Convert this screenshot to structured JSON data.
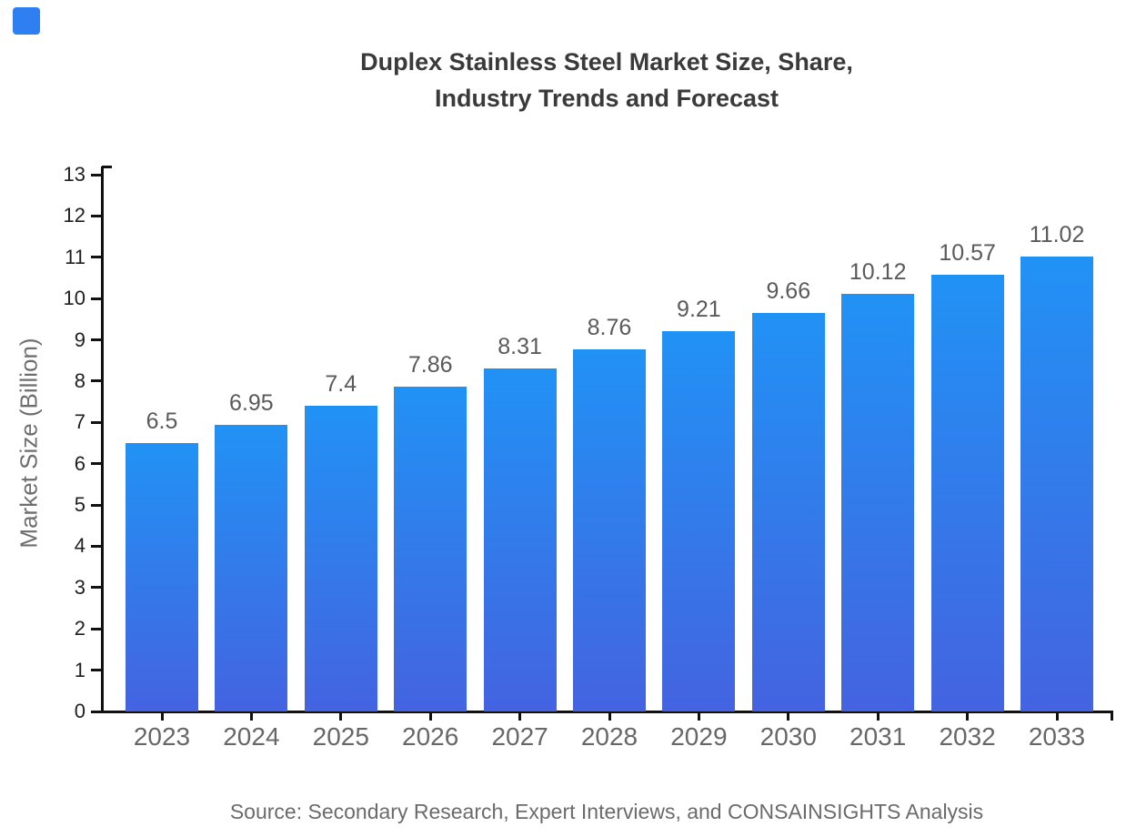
{
  "page": {
    "background": "#ffffff"
  },
  "brand_mark": {
    "color": "#2e7ff2"
  },
  "chart_data": {
    "type": "bar",
    "title": "Duplex Stainless Steel Market Size, Share,\nIndustry Trends and Forecast",
    "categories": [
      "2023",
      "2024",
      "2025",
      "2026",
      "2027",
      "2028",
      "2029",
      "2030",
      "2031",
      "2032",
      "2033"
    ],
    "values": [
      6.5,
      6.95,
      7.4,
      7.86,
      8.31,
      8.76,
      9.21,
      9.66,
      10.12,
      10.57,
      11.02
    ],
    "value_labels": [
      "6.5",
      "6.95",
      "7.4",
      "7.86",
      "8.31",
      "8.76",
      "9.21",
      "9.66",
      "10.12",
      "10.57",
      "11.02"
    ],
    "xlabel": "",
    "ylabel": "Market Size (Billion)",
    "ylim": [
      0,
      13
    ],
    "ytick_step": 1,
    "yticks": [
      0,
      1,
      2,
      3,
      4,
      5,
      6,
      7,
      8,
      9,
      10,
      11,
      12,
      13
    ],
    "grid": false,
    "legend": false,
    "bar_gradient": {
      "top": "#2192f5",
      "bottom": "#4463e1"
    },
    "source_note": "Source: Secondary Research, Expert Interviews, and CONSAINSIGHTS Analysis",
    "colors": {
      "title": "#3a3a3a",
      "axis": "#111111",
      "ytick_label": "#1f1f1f",
      "xtick_label": "#676767",
      "value_label": "#5a5a5c",
      "ylabel": "#6e6e6e",
      "source": "#6b6b6b"
    }
  }
}
